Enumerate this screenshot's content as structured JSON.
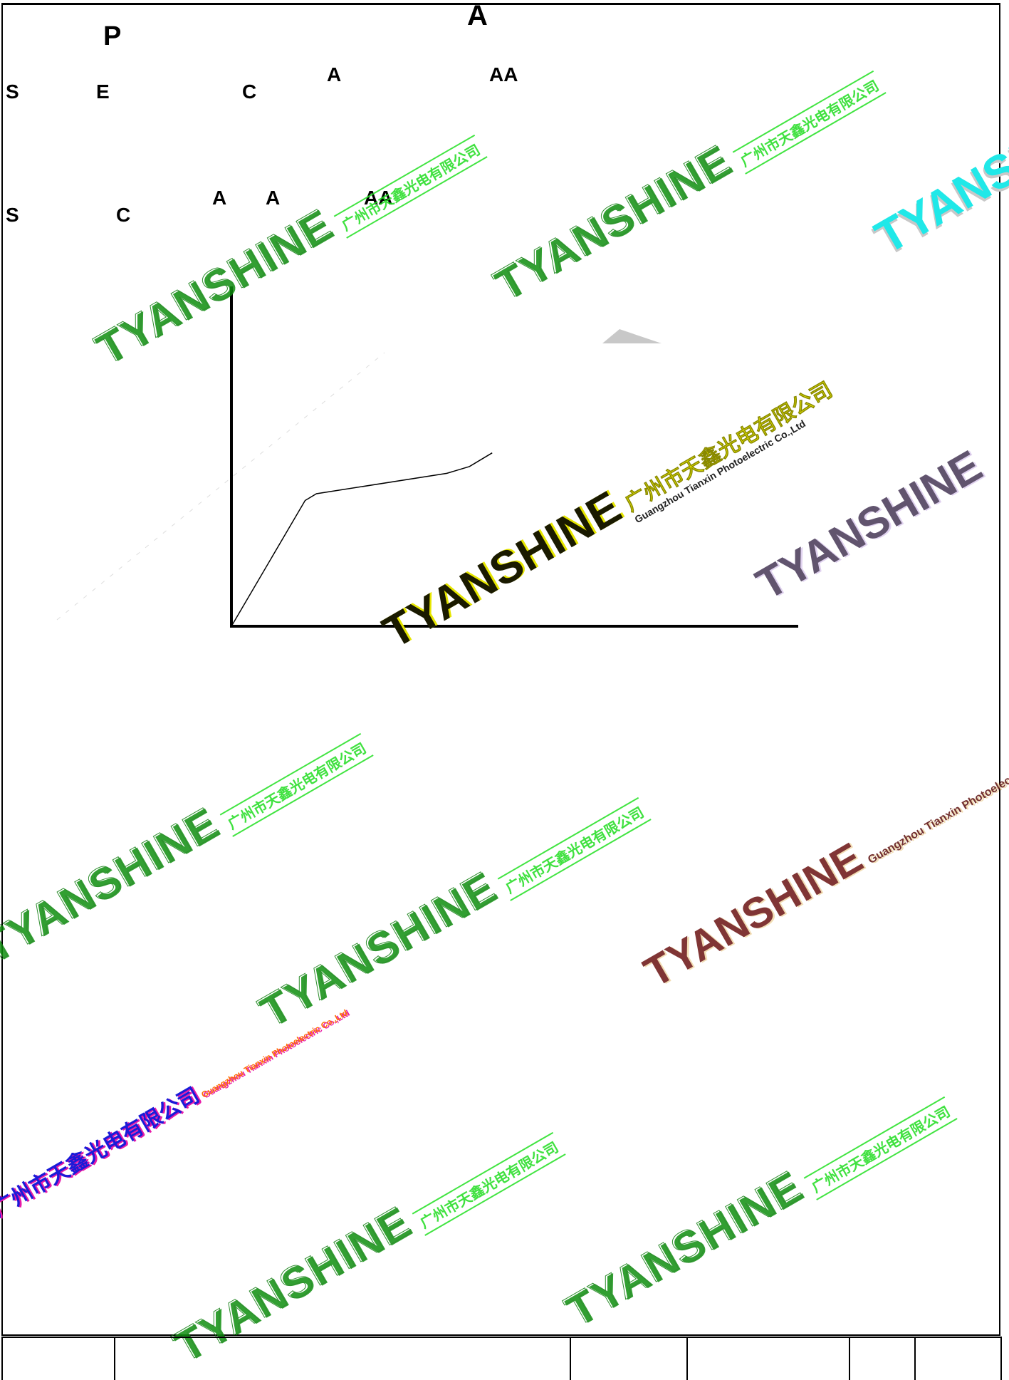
{
  "header": {
    "title": "P",
    "top_center": "A"
  },
  "labels": {
    "row1": [
      "S",
      "E",
      "C",
      "A",
      "AA"
    ],
    "row2": [
      "S",
      "C",
      "A",
      "A",
      "AA"
    ]
  },
  "watermarks": {
    "brand": "TYANSHINE",
    "company_cn": "广州市天鑫光电有限公司",
    "company_en": "Guangzhou Tianxin Photoelectric Co.,Ltd",
    "colors": {
      "green": "#11c811",
      "yellow": "#e6e600",
      "cyan": "#20e8e8",
      "purple": "#3a2a4a",
      "maroon": "#6a1212",
      "blue": "#1b1bd8"
    }
  },
  "chart_data": {
    "type": "line",
    "title": "",
    "xlabel": "",
    "ylabel": "",
    "series": [
      {
        "values": [
          [
            0,
            0
          ],
          [
            0.13,
            0.37
          ],
          [
            0.15,
            0.39
          ],
          [
            0.38,
            0.45
          ],
          [
            0.42,
            0.47
          ],
          [
            0.46,
            0.51
          ]
        ]
      }
    ],
    "xlim": [
      0,
      1
    ],
    "ylim": [
      0,
      1
    ],
    "grid": false
  },
  "footer": {
    "cells": [
      "",
      "",
      "",
      "",
      "",
      "",
      ""
    ]
  }
}
